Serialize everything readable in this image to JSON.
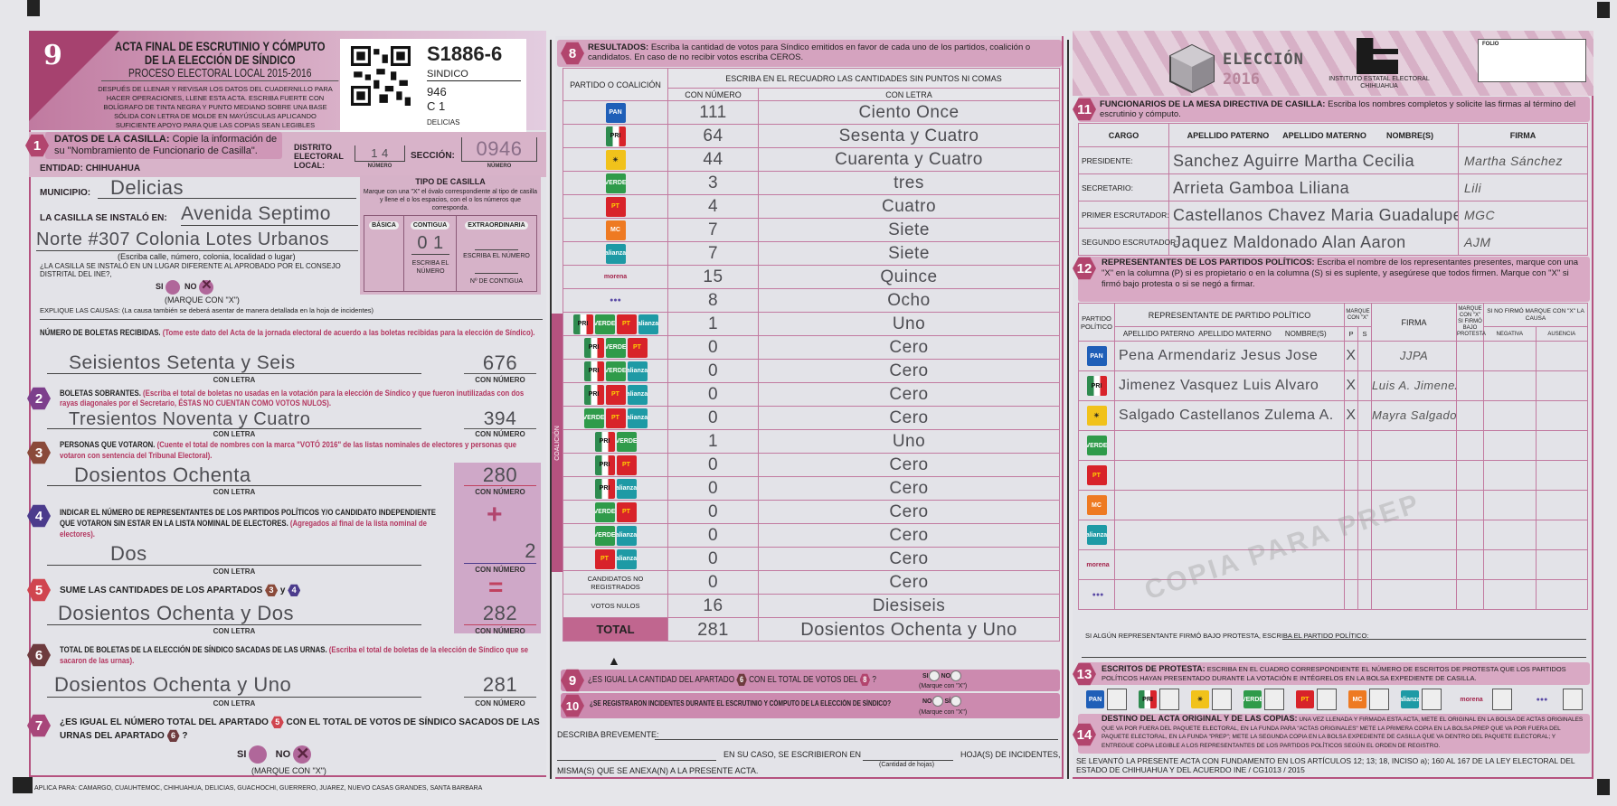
{
  "header": {
    "form_number": "9",
    "title_line1": "ACTA FINAL DE ESCRUTINIO Y CÓMPUTO",
    "title_line2": "DE LA ELECCIÓN DE SÍNDICO",
    "subtitle": "PROCESO ELECTORAL LOCAL 2015-2016",
    "instructions": "DESPUÉS DE LLENAR Y REVISAR LOS DATOS DEL CUADERNILLO PARA HACER OPERACIONES, LLENE ESTA ACTA. ESCRIBA FUERTE CON BOLÍGRAFO DE TINTA NEGRA Y PUNTO MEDIANO SOBRE UNA BASE SÓLIDA CON LETRA DE MOLDE EN MAYÚSCULAS APLICANDO SUFICIENTE APOYO PARA QUE LAS COPIAS SEAN LEGIBLES"
  },
  "sticker": {
    "code": "S1886-6",
    "election": "SINDICO",
    "section": "946",
    "casilla": "C 1",
    "municipality": "DELICIAS"
  },
  "s1": {
    "num": "1",
    "title": "DATOS DE LA CASILLA:",
    "text": "Copie la información de su \"Nombramiento de Funcionario de Casilla\".",
    "distrito_label": "DISTRITO ELECTORAL LOCAL:",
    "distrito_value": "1 4",
    "numero_caption": "NÚMERO",
    "seccion_label": "SECCIÓN:",
    "seccion_value": "0946",
    "entidad_label": "ENTIDAD:",
    "entidad_value": "CHIHUAHUA",
    "municipio_label": "MUNICIPIO:",
    "municipio_value": "Delicias",
    "instalo_label": "LA CASILLA SE INSTALÓ EN:",
    "instalo_line1": "Avenida Septimo",
    "instalo_line2": "Norte #307 Colonia Lotes Urbanos",
    "instalo_caption": "(Escriba calle, número, colonia, localidad o lugar)",
    "diferente_q": "¿LA CASILLA SE INSTALÓ EN UN LUGAR DIFERENTE AL APROBADO POR EL CONSEJO DISTRITAL DEL INE?,",
    "si_label": "SI",
    "no_label": "NO",
    "selected": "NO",
    "marque": "(MARQUE CON \"X\")",
    "explique": "EXPLIQUE LAS CAUSAS:",
    "explique_note": "(La causa también se deberá asentar de manera detallada en la hoja de incidentes)",
    "tipo": {
      "title": "TIPO DE CASILLA",
      "instructions": "Marque con una \"X\" el óvalo correspondiente al tipo de casilla y llene el o los espacios, con el o los números que corresponda.",
      "basica": "BÁSICA",
      "contigua": "CONTIGUA",
      "extraordinaria": "EXTRAORDINARIA",
      "contigua_value": "0 1",
      "escriba_numero": "ESCRIBA EL NÚMERO",
      "n_contigua": "Nº DE CONTIGUA"
    }
  },
  "boletas": {
    "title": "NÚMERO DE BOLETAS RECIBIDAS.",
    "note": "(Tome este dato del Acta de la jornada electoral de acuerdo a las boletas recibidas para la elección de Síndico).",
    "letra": "Seisientos Setenta y Seis",
    "numero": "676"
  },
  "captions": {
    "con_letra": "CON LETRA",
    "con_numero": "CON NÚMERO"
  },
  "s2": {
    "num": "2",
    "title": "BOLETAS SOBRANTES.",
    "note": "(Escriba el total de boletas no usadas en la votación para la elección de Síndico y que fueron inutilizadas con dos rayas diagonales por el Secretario, ÉSTAS NO CUENTAN COMO VOTOS NULOS).",
    "letra": "Tresientos Noventa y Cuatro",
    "numero": "394"
  },
  "s3": {
    "num": "3",
    "title": "PERSONAS QUE VOTARON.",
    "note": "(Cuente el total de nombres con la marca \"VOTÓ 2016\" de las listas nominales de electores y personas que votaron con sentencia del Tribunal Electoral).",
    "letra": "Dosientos Ochenta",
    "numero": "280"
  },
  "s4": {
    "num": "4",
    "title": "INDICAR EL NÚMERO DE REPRESENTANTES DE LOS PARTIDOS POLÍTICOS Y/O CANDIDATO INDEPENDIENTE QUE VOTARON SIN ESTAR EN LA LISTA NOMINAL DE ELECTORES.",
    "note": "(Agregados al final de la lista nominal de electores).",
    "letra": "Dos",
    "numero": "2",
    "plus": "+",
    "equals": "="
  },
  "s5": {
    "num": "5",
    "title": "SUME LAS CANTIDADES DE LOS APARTADOS",
    "a": "3",
    "y": "y",
    "b": "4",
    "letra": "Dosientos Ochenta y Dos",
    "numero": "282"
  },
  "s6": {
    "num": "6",
    "title": "TOTAL DE BOLETAS DE LA ELECCIÓN DE SÍNDICO SACADAS DE LAS URNAS.",
    "note": "(Escriba el total de boletas de la elección de Síndico que se sacaron de las urnas).",
    "letra": "Dosientos Ochenta y Uno",
    "numero": "281"
  },
  "s7": {
    "num": "7",
    "q1": "¿ES IGUAL EL NÚMERO TOTAL DEL APARTADO",
    "ref1": "5",
    "q2": "CON EL TOTAL DE VOTOS DE SÍNDICO SACADOS DE LAS URNAS DEL APARTADO",
    "ref2": "6",
    "q3": "?",
    "si": "SI",
    "no": "NO",
    "selected": "NO",
    "marque": "(MARQUE CON \"X\")"
  },
  "footer_left": "APLICA PARA: CAMARGO, CUAUHTEMOC, CHIHUAHUA, DELICIAS, GUACHOCHI, GUERRERO, JUAREZ, NUEVO CASAS GRANDES, SANTA BARBARA",
  "s8": {
    "num": "8",
    "title": "RESULTADOS:",
    "text": "Escriba la cantidad de votos para Síndico emitidos en favor de cada uno de los partidos, coalición o candidatos. En caso de no recibir votos escriba CEROS.",
    "col_party": "PARTIDO O COALICIÓN",
    "col_group": "ESCRIBA EN EL RECUADRO LAS CANTIDADES SIN PUNTOS NI COMAS",
    "col_num": "CON NÚMERO",
    "col_letra": "CON LETRA",
    "coalicion_label": "COALICIÓN",
    "rows": [
      {
        "icons": [
          "pan"
        ],
        "numero": "111",
        "letra": "Ciento Once"
      },
      {
        "icons": [
          "pri"
        ],
        "numero": "64",
        "letra": "Sesenta y Cuatro"
      },
      {
        "icons": [
          "prd"
        ],
        "numero": "44",
        "letra": "Cuarenta y Cuatro"
      },
      {
        "icons": [
          "verde"
        ],
        "numero": "3",
        "letra": "tres"
      },
      {
        "icons": [
          "pt"
        ],
        "numero": "4",
        "letra": "Cuatro"
      },
      {
        "icons": [
          "mc"
        ],
        "numero": "7",
        "letra": "Siete"
      },
      {
        "icons": [
          "alianza"
        ],
        "numero": "7",
        "letra": "Siete"
      },
      {
        "icons": [
          "morena"
        ],
        "numero": "15",
        "letra": "Quince"
      },
      {
        "icons": [
          "encuentro"
        ],
        "numero": "8",
        "letra": "Ocho"
      },
      {
        "icons": [
          "pri",
          "verde",
          "pt",
          "alianza"
        ],
        "numero": "1",
        "letra": "Uno",
        "coalition": true
      },
      {
        "icons": [
          "pri",
          "verde",
          "pt"
        ],
        "numero": "0",
        "letra": "Cero",
        "coalition": true
      },
      {
        "icons": [
          "pri",
          "verde",
          "alianza"
        ],
        "numero": "0",
        "letra": "Cero",
        "coalition": true
      },
      {
        "icons": [
          "pri",
          "pt",
          "alianza"
        ],
        "numero": "0",
        "letra": "Cero",
        "coalition": true
      },
      {
        "icons": [
          "verde",
          "pt",
          "alianza"
        ],
        "numero": "0",
        "letra": "Cero",
        "coalition": true
      },
      {
        "icons": [
          "pri",
          "verde"
        ],
        "numero": "1",
        "letra": "Uno",
        "coalition": true
      },
      {
        "icons": [
          "pri",
          "pt"
        ],
        "numero": "0",
        "letra": "Cero",
        "coalition": true
      },
      {
        "icons": [
          "pri",
          "alianza"
        ],
        "numero": "0",
        "letra": "Cero",
        "coalition": true
      },
      {
        "icons": [
          "verde",
          "pt"
        ],
        "numero": "0",
        "letra": "Cero",
        "coalition": true
      },
      {
        "icons": [
          "verde",
          "alianza"
        ],
        "numero": "0",
        "letra": "Cero",
        "coalition": true
      },
      {
        "icons": [
          "pt",
          "alianza"
        ],
        "numero": "0",
        "letra": "Cero",
        "coalition": true
      },
      {
        "label": "CANDIDATOS NO REGISTRADOS",
        "numero": "0",
        "letra": "Cero"
      },
      {
        "label": "VOTOS NULOS",
        "numero": "16",
        "letra": "Diesiseis"
      }
    ],
    "total_label": "TOTAL",
    "total_numero": "281",
    "total_letra": "Dosientos Ochenta y Uno"
  },
  "s9": {
    "num": "9",
    "q1": "¿ES IGUAL LA CANTIDAD DEL APARTADO",
    "ref1": "6",
    "q2": "CON EL TOTAL DE VOTOS DEL",
    "ref2": "8",
    "q3": "?",
    "si": "SI",
    "no": "NO",
    "marque": "(Marque con \"X\")"
  },
  "s10": {
    "num": "10",
    "q": "¿SE REGISTRARON INCIDENTES DURANTE EL ESCRUTINIO Y CÓMPUTO DE LA ELECCIÓN DE SÍNDICO?",
    "no": "NO",
    "si": "SÍ",
    "marque": "(Marque con \"X\")",
    "describa": "DESCRIBA BREVEMENTE:",
    "en_su_caso": "EN SU CASO, SE ESCRIBIERON EN",
    "cantidad": "(Cantidad de hojas)",
    "hojas": "HOJA(S) DE INCIDENTES,",
    "misma": "MISMA(S) QUE SE ANEXA(N) A LA PRESENTE ACTA."
  },
  "brand": {
    "eleccion": "ELECCIÓN",
    "year": "2016",
    "institute_line1": "INSTITUTO ESTATAL ELECTORAL",
    "institute_line2": "CHIHUAHUA",
    "folio": "FOLIO"
  },
  "s11": {
    "num": "11",
    "title": "FUNCIONARIOS DE LA MESA DIRECTIVA DE CASILLA:",
    "text": "Escriba los nombres completos y solicite las firmas al término del escrutinio y cómputo.",
    "cols": [
      "CARGO",
      "APELLIDO PATERNO",
      "APELLIDO MATERNO",
      "NOMBRE(S)",
      "FIRMA"
    ],
    "rows": [
      {
        "cargo": "PRESIDENTE:",
        "nombre": "Sanchez Aguirre Martha Cecilia",
        "firma": "Martha Sánchez"
      },
      {
        "cargo": "SECRETARIO:",
        "nombre": "Arrieta Gamboa Liliana",
        "firma": "Lili"
      },
      {
        "cargo": "PRIMER ESCRUTADOR:",
        "nombre": "Castellanos Chavez Maria Guadalupe",
        "firma": "MGC"
      },
      {
        "cargo": "SEGUNDO ESCRUTADOR:",
        "nombre": "Jaquez Maldonado Alan Aaron",
        "firma": "AJM"
      }
    ]
  },
  "s12": {
    "num": "12",
    "title": "REPRESENTANTES DE LOS PARTIDOS POLÍTICOS:",
    "text": "Escriba el nombre de los representantes presentes, marque con una \"X\" en la columna (P) si es propietario o en la columna (S) si es suplente, y asegúrese que todos firmen. Marque con \"X\" si firmó bajo protesta o si se negó a firmar.",
    "col_party": "PARTIDO POLÍTICO",
    "col_rep": "REPRESENTANTE DE PARTIDO POLÍTICO",
    "col_paterno": "APELLIDO PATERNO",
    "col_materno": "APELLIDO MATERNO",
    "col_nombre": "NOMBRE(S)",
    "col_marque": "MARQUE CON \"X\"",
    "col_p": "P",
    "col_s": "S",
    "col_firma": "FIRMA",
    "col_protesta": "MARQUE CON \"X\" SI FIRMÓ BAJO PROTESTA",
    "col_nofirmo": "SI NO FIRMÓ MARQUE CON \"X\" LA CAUSA",
    "col_negativa": "NEGATIVA",
    "col_ausencia": "AUSENCIA",
    "rows": [
      {
        "icon": "pan",
        "nombre": "Pena Armendariz Jesus Jose",
        "p": "X",
        "s": "",
        "firma": "JJPA"
      },
      {
        "icon": "pri",
        "nombre": "Jimenez Vasquez Luis Alvaro",
        "p": "X",
        "s": "",
        "firma": "Luis A. Jimenez"
      },
      {
        "icon": "prd",
        "nombre": "Salgado Castellanos Zulema A.",
        "p": "X",
        "s": "",
        "firma": "Mayra Salgado"
      },
      {
        "icon": "verde",
        "nombre": "",
        "p": "",
        "s": "",
        "firma": ""
      },
      {
        "icon": "pt",
        "nombre": "",
        "p": "",
        "s": "",
        "firma": ""
      },
      {
        "icon": "mc",
        "nombre": "",
        "p": "",
        "s": "",
        "firma": ""
      },
      {
        "icon": "alianza",
        "nombre": "",
        "p": "",
        "s": "",
        "firma": ""
      },
      {
        "icon": "morena",
        "nombre": "",
        "p": "",
        "s": "",
        "firma": ""
      },
      {
        "icon": "encuentro",
        "nombre": "",
        "p": "",
        "s": "",
        "firma": ""
      }
    ],
    "bajo_protesta": "SI ALGÚN REPRESENTANTE FIRMÓ BAJO PROTESTA, ESCRIBA EL PARTIDO POLÍTICO:"
  },
  "s13": {
    "num": "13",
    "title": "ESCRITOS DE PROTESTA:",
    "text": "ESCRIBA EN EL CUADRO CORRESPONDIENTE EL NÚMERO DE ESCRITOS DE PROTESTA QUE LOS PARTIDOS POLÍTICOS HAYAN PRESENTADO DURANTE LA VOTACIÓN E INTÉGRELOS EN LA BOLSA EXPEDIENTE DE CASILLA.",
    "parties": [
      "pan",
      "pri",
      "prd",
      "verde",
      "pt",
      "mc",
      "alianza",
      "morena",
      "encuentro"
    ]
  },
  "s14": {
    "num": "14",
    "title": "DESTINO DEL ACTA ORIGINAL Y DE LAS COPIAS:",
    "text": "UNA VEZ LLENADA Y FIRMADA ESTA ACTA, METE EL ORIGINAL EN LA BOLSA DE ACTAS ORIGINALES QUE VA POR FUERA DEL PAQUETE ELECTORAL, EN LA FUNDA PARA \"ACTAS ORIGINALES\" METE LA PRIMERA COPIA EN LA BOLSA PREP QUE VA POR FUERA DEL PAQUETE ELECTORAL, EN LA FUNDA \"PREP\"; METE LA SEGUNDA COPIA EN LA BOLSA EXPEDIENTE DE CASILLA QUE VA DENTRO DEL PAQUETE ELECTORAL; Y ENTREGUE COPIA LEGIBLE A LOS REPRESENTANTES DE LOS PARTIDOS POLÍTICOS SEGÚN EL ORDEN DE REGISTRO."
  },
  "legal": "SE LEVANTÓ LA PRESENTE ACTA CON FUNDAMENTO EN LOS ARTÍCULOS 12; 13; 18, INCISO a); 160 AL 167 DE LA LEY ELECTORAL DEL ESTADO DE CHIHUAHUA Y DEL ACUERDO INE / CG1013 / 2015",
  "watermark": "COPIA PARA PREP",
  "colors": {
    "accent": "#b5527f",
    "band": "#d9a9c4",
    "table_line": "#c27aa0",
    "hex1": "#b2456e",
    "hex2": "#7d3f8c",
    "hex3": "#8a4a3a",
    "hex4": "#4b3b8c",
    "hex5": "#d0454f",
    "hex6": "#6e3b3e",
    "hex7": "#a8467a"
  },
  "party_icons": {
    "pan": {
      "text": "PAN",
      "bg": "#1f5fb8",
      "fg": "#ffffff"
    },
    "pri": {
      "text": "PRI",
      "bg": "#2e8b4f",
      "fg": "#ffffff"
    },
    "prd": {
      "text": "☀",
      "bg": "#f1c21b",
      "fg": "#222222"
    },
    "verde": {
      "text": "VERDE",
      "bg": "#2f9b4a",
      "fg": "#ffffff"
    },
    "pt": {
      "text": "PT",
      "bg": "#d8232a",
      "fg": "#ffd200"
    },
    "mc": {
      "text": "MC",
      "bg": "#ee7a22",
      "fg": "#ffffff"
    },
    "alianza": {
      "text": "alianza",
      "bg": "#1e9aa5",
      "fg": "#ffffff"
    },
    "morena": {
      "text": "morena",
      "bg": "transparent",
      "fg": "#a3244b"
    },
    "encuentro": {
      "text": "●●●",
      "bg": "transparent",
      "fg": "#5a4aa5"
    }
  }
}
